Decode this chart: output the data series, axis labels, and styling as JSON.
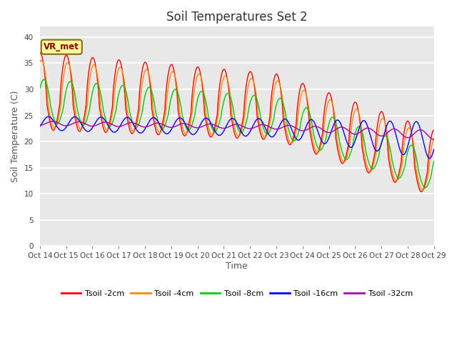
{
  "title": "Soil Temperatures Set 2",
  "xlabel": "Time",
  "ylabel": "Soil Temperature (C)",
  "ylim": [
    0,
    42
  ],
  "yticks": [
    0,
    5,
    10,
    15,
    20,
    25,
    30,
    35,
    40
  ],
  "x_labels": [
    "Oct 14",
    "Oct 15",
    "Oct 16",
    "Oct 17",
    "Oct 18",
    "Oct 19",
    "Oct 20",
    "Oct 21",
    "Oct 22",
    "Oct 23",
    "Oct 24",
    "Oct 25",
    "Oct 26",
    "Oct 27",
    "Oct 28",
    "Oct 29"
  ],
  "annotation_text": "VR_met",
  "legend": [
    {
      "label": "Tsoil -2cm",
      "color": "#ff0000"
    },
    {
      "label": "Tsoil -4cm",
      "color": "#ff8800"
    },
    {
      "label": "Tsoil -8cm",
      "color": "#00cc00"
    },
    {
      "label": "Tsoil -16cm",
      "color": "#0000ff"
    },
    {
      "label": "Tsoil -32cm",
      "color": "#aa00aa"
    }
  ],
  "background_color": "#e8e8e8",
  "fig_background": "#ffffff",
  "grid_color": "#ffffff"
}
